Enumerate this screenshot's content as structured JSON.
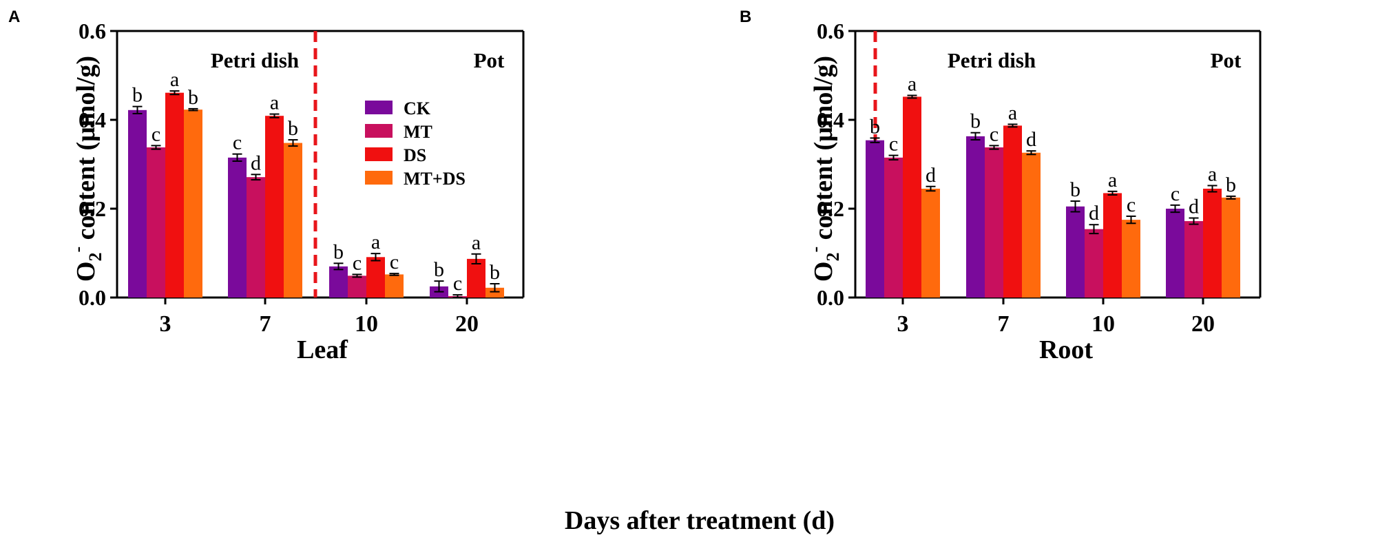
{
  "figure": {
    "common_xlabel": "Days after treatment (d)",
    "legend_title": ""
  },
  "chart_data": [
    {
      "type": "bar",
      "panel_label": "A",
      "title": "",
      "xlabel": "Leaf",
      "ylabel_main": "O",
      "ylabel_sub": "2",
      "ylabel_sup": "-",
      "ylabel_rest": " content (μmol/g)",
      "ylim": [
        0,
        0.6
      ],
      "yticks": [
        "0.0",
        "0.2",
        "0.4",
        "0.6"
      ],
      "categories": [
        "3",
        "7",
        "10",
        "20"
      ],
      "region_labels": [
        "Petri dish",
        "Pot"
      ],
      "series": [
        {
          "name": "CK",
          "color": "#7a0a9b",
          "values": [
            0.422,
            0.315,
            0.07,
            0.025
          ],
          "errors": [
            0.008,
            0.008,
            0.007,
            0.012
          ],
          "letters": [
            "b",
            "c",
            "b",
            "b"
          ]
        },
        {
          "name": "MT",
          "color": "#c8105e",
          "values": [
            0.338,
            0.271,
            0.049,
            0.003
          ],
          "errors": [
            0.004,
            0.006,
            0.003,
            0.003
          ],
          "letters": [
            "c",
            "d",
            "c",
            "c"
          ]
        },
        {
          "name": "DS",
          "color": "#f01010",
          "values": [
            0.461,
            0.409,
            0.091,
            0.087
          ],
          "errors": [
            0.004,
            0.004,
            0.008,
            0.011
          ],
          "letters": [
            "a",
            "a",
            "a",
            "a"
          ]
        },
        {
          "name": "MT+DS",
          "color": "#ff6a0d",
          "values": [
            0.423,
            0.348,
            0.052,
            0.022
          ],
          "errors": [
            0.002,
            0.007,
            0.002,
            0.009
          ],
          "letters": [
            "b",
            "b",
            "c",
            "b"
          ]
        }
      ],
      "legend": [
        "CK",
        "MT",
        "DS",
        "MT+DS"
      ]
    },
    {
      "type": "bar",
      "panel_label": "B",
      "title": "",
      "xlabel": "Root",
      "ylabel_main": "O",
      "ylabel_sub": "2",
      "ylabel_sup": "-",
      "ylabel_rest": " content (μmol/g)",
      "ylim": [
        0,
        0.6
      ],
      "yticks": [
        "0.0",
        "0.2",
        "0.4",
        "0.6"
      ],
      "categories": [
        "3",
        "7",
        "10",
        "20"
      ],
      "region_labels": [
        "Petri dish",
        "Pot"
      ],
      "series": [
        {
          "name": "CK",
          "color": "#7a0a9b",
          "values": [
            0.354,
            0.363,
            0.205,
            0.2
          ],
          "errors": [
            0.005,
            0.008,
            0.012,
            0.008
          ],
          "letters": [
            "b",
            "b",
            "b",
            "c"
          ]
        },
        {
          "name": "MT",
          "color": "#c8105e",
          "values": [
            0.315,
            0.338,
            0.154,
            0.172
          ],
          "errors": [
            0.005,
            0.004,
            0.01,
            0.007
          ],
          "letters": [
            "c",
            "c",
            "d",
            "d"
          ]
        },
        {
          "name": "DS",
          "color": "#f01010",
          "values": [
            0.452,
            0.387,
            0.235,
            0.245
          ],
          "errors": [
            0.003,
            0.003,
            0.004,
            0.007
          ],
          "letters": [
            "a",
            "a",
            "a",
            "a"
          ]
        },
        {
          "name": "MT+DS",
          "color": "#ff6a0d",
          "values": [
            0.245,
            0.326,
            0.175,
            0.225
          ],
          "errors": [
            0.005,
            0.004,
            0.008,
            0.003
          ],
          "letters": [
            "d",
            "d",
            "c",
            "b"
          ]
        }
      ],
      "legend": []
    }
  ]
}
